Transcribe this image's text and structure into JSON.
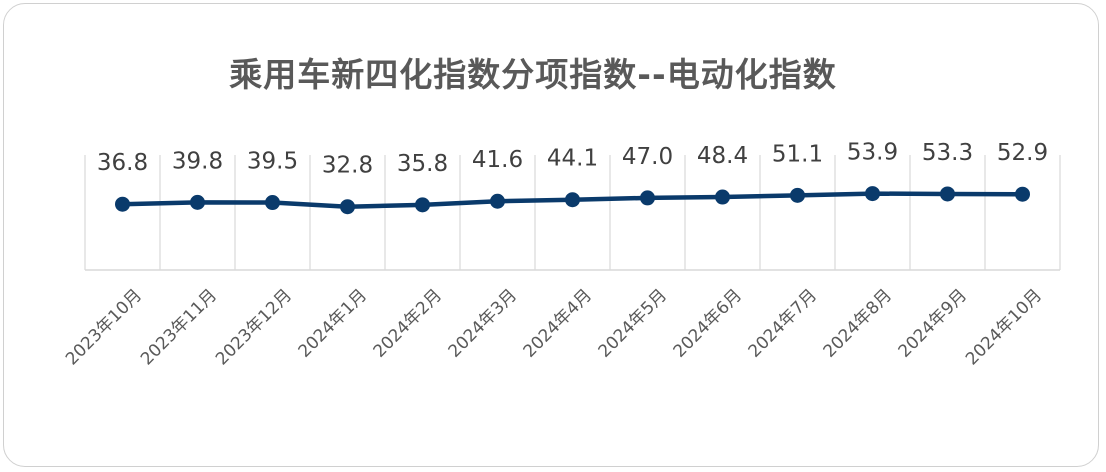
{
  "chart_data": {
    "type": "line",
    "title": "乘用车新四化指数分项指数--电动化指数",
    "categories": [
      "2023年10月",
      "2023年11月",
      "2023年12月",
      "2024年1月",
      "2024年2月",
      "2024年3月",
      "2024年4月",
      "2024年5月",
      "2024年6月",
      "2024年7月",
      "2024年8月",
      "2024年9月",
      "2024年10月"
    ],
    "values": [
      36.8,
      39.8,
      39.5,
      32.8,
      35.8,
      41.6,
      44.1,
      47.0,
      48.4,
      51.1,
      53.9,
      53.3,
      52.9
    ],
    "value_labels": [
      "36.8",
      "39.8",
      "39.5",
      "32.8",
      "35.8",
      "41.6",
      "44.1",
      "47.0",
      "48.4",
      "51.1",
      "53.9",
      "53.3",
      "52.9"
    ],
    "ylim": [
      -69,
      116
    ],
    "grid": "vertical",
    "legend": "none",
    "colors": {
      "line": "#0a3a6b",
      "grid": "#d9d9d9",
      "text": "#404040"
    }
  }
}
